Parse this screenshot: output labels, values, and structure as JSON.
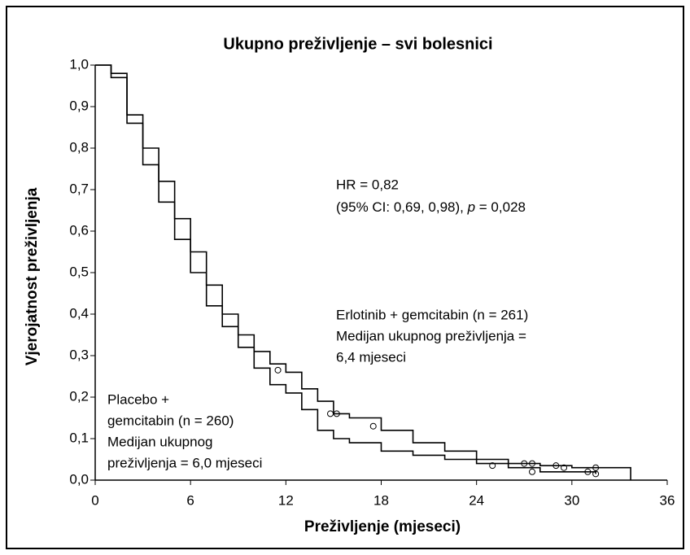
{
  "chart_data": {
    "type": "step",
    "title": "Ukupno preživljenje – svi bolesnici",
    "xlabel": "Preživljenje (mjeseci)",
    "ylabel": "Vjerojatnost preživljenja",
    "xlim": [
      0,
      36
    ],
    "ylim": [
      0,
      1
    ],
    "xticks": [
      0,
      6,
      12,
      18,
      24,
      30,
      36
    ],
    "yticks": [
      {
        "value": 0,
        "label": "0,0"
      },
      {
        "value": 0.1,
        "label": "0,1"
      },
      {
        "value": 0.2,
        "label": "0,2"
      },
      {
        "value": 0.3,
        "label": "0,3"
      },
      {
        "value": 0.4,
        "label": "0,4"
      },
      {
        "value": 0.5,
        "label": "0,5"
      },
      {
        "value": 0.6,
        "label": "0,6"
      },
      {
        "value": 0.7,
        "label": "0,7"
      },
      {
        "value": 0.8,
        "label": "0,8"
      },
      {
        "value": 0.9,
        "label": "0,9"
      },
      {
        "value": 1.0,
        "label": "1,0"
      }
    ],
    "series": [
      {
        "color": "#000000",
        "x": [
          0,
          1,
          2,
          3,
          4,
          5,
          6,
          7,
          8,
          9,
          10,
          11,
          12,
          13,
          14,
          15,
          16,
          18,
          20,
          22,
          24,
          26,
          28,
          30,
          33.7
        ],
        "values": [
          1.0,
          0.98,
          0.88,
          0.8,
          0.72,
          0.63,
          0.55,
          0.47,
          0.4,
          0.35,
          0.31,
          0.28,
          0.26,
          0.22,
          0.19,
          0.16,
          0.15,
          0.12,
          0.09,
          0.07,
          0.05,
          0.04,
          0.035,
          0.03,
          0
        ],
        "censored_x": [
          11.5,
          14.8,
          15.2,
          17.5,
          27,
          27.5,
          29,
          29.5,
          31.5
        ],
        "censored_y": [
          0.265,
          0.16,
          0.16,
          0.13,
          0.04,
          0.04,
          0.035,
          0.03,
          0.03
        ]
      },
      {
        "color": "#000000",
        "x": [
          0,
          1,
          2,
          3,
          4,
          5,
          6,
          7,
          8,
          9,
          10,
          11,
          12,
          13,
          14,
          15,
          16,
          18,
          20,
          22,
          24,
          26,
          28,
          31.5
        ],
        "values": [
          1.0,
          0.97,
          0.86,
          0.76,
          0.67,
          0.58,
          0.5,
          0.42,
          0.37,
          0.32,
          0.27,
          0.23,
          0.21,
          0.17,
          0.12,
          0.1,
          0.09,
          0.07,
          0.06,
          0.05,
          0.04,
          0.03,
          0.02,
          0.015
        ],
        "censored_x": [
          25,
          27.5,
          31,
          31.5
        ],
        "censored_y": [
          0.035,
          0.02,
          0.02,
          0.015
        ]
      }
    ],
    "annotations": [
      {
        "lines": [
          "HR = 0,82"
        ]
      },
      {
        "parts": [
          "(95% CI: 0,69, 0,98), ",
          "p",
          " = 0,028"
        ]
      },
      {
        "lines": [
          "Erlotinib  + gemcitabin (n = 261)",
          "Medijan ukupnog preživljenja =",
          "6,4 mjeseci"
        ]
      },
      {
        "lines": [
          "Placebo +",
          "gemcitabin (n = 260)",
          "Medijan ukupnog",
          "preživljenja = 6,0 mjeseci"
        ]
      }
    ]
  }
}
